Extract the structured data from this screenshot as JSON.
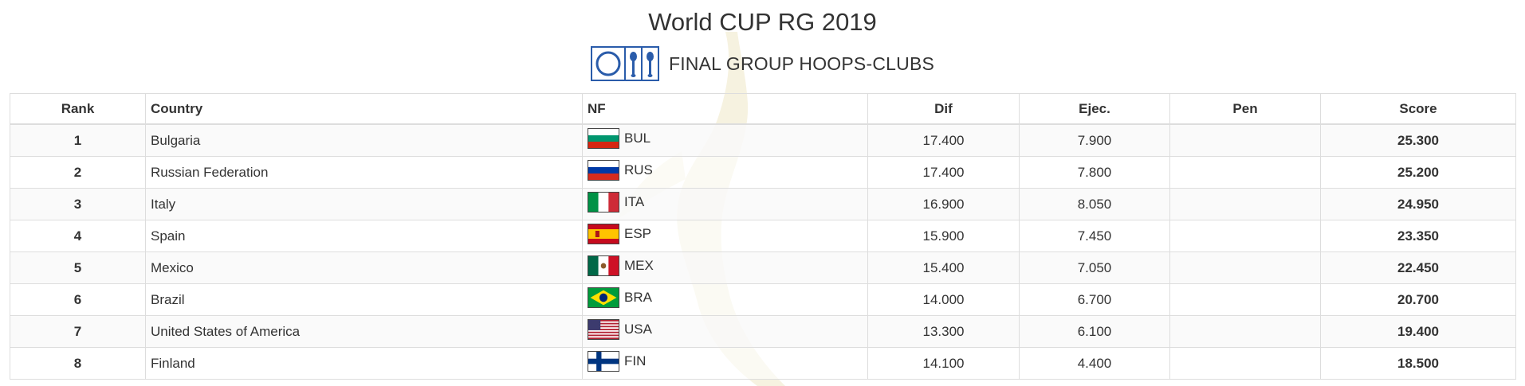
{
  "title": "World CUP RG 2019",
  "subtitle": {
    "icon": "hoops-clubs-icon",
    "text": "FINAL GROUP HOOPS-CLUBS"
  },
  "table": {
    "headers": {
      "rank": "Rank",
      "country": "Country",
      "nf": "NF",
      "dif": "Dif",
      "ejec": "Ejec.",
      "pen": "Pen",
      "score": "Score"
    },
    "rows": [
      {
        "rank": "1",
        "country": "Bulgaria",
        "nf": "BUL",
        "flag": "bul-flag",
        "dif": "17.400",
        "ejec": "7.900",
        "pen": "",
        "score": "25.300"
      },
      {
        "rank": "2",
        "country": "Russian Federation",
        "nf": "RUS",
        "flag": "rus-flag",
        "dif": "17.400",
        "ejec": "7.800",
        "pen": "",
        "score": "25.200"
      },
      {
        "rank": "3",
        "country": "Italy",
        "nf": "ITA",
        "flag": "ita-flag",
        "dif": "16.900",
        "ejec": "8.050",
        "pen": "",
        "score": "24.950"
      },
      {
        "rank": "4",
        "country": "Spain",
        "nf": "ESP",
        "flag": "esp-flag",
        "dif": "15.900",
        "ejec": "7.450",
        "pen": "",
        "score": "23.350"
      },
      {
        "rank": "5",
        "country": "Mexico",
        "nf": "MEX",
        "flag": "mex-flag",
        "dif": "15.400",
        "ejec": "7.050",
        "pen": "",
        "score": "22.450"
      },
      {
        "rank": "6",
        "country": "Brazil",
        "nf": "BRA",
        "flag": "bra-flag",
        "dif": "14.000",
        "ejec": "6.700",
        "pen": "",
        "score": "20.700"
      },
      {
        "rank": "7",
        "country": "United States of America",
        "nf": "USA",
        "flag": "usa-flag",
        "dif": "13.300",
        "ejec": "6.100",
        "pen": "",
        "score": "19.400"
      },
      {
        "rank": "8",
        "country": "Finland",
        "nf": "FIN",
        "flag": "fin-flag",
        "dif": "14.100",
        "ejec": "4.400",
        "pen": "",
        "score": "18.500"
      }
    ]
  },
  "colors": {
    "text": "#333333",
    "border": "#dddddd",
    "stripe": "#f9f9f9",
    "icon_blue": "#2a5caa",
    "watermark": "#f3edd6"
  }
}
